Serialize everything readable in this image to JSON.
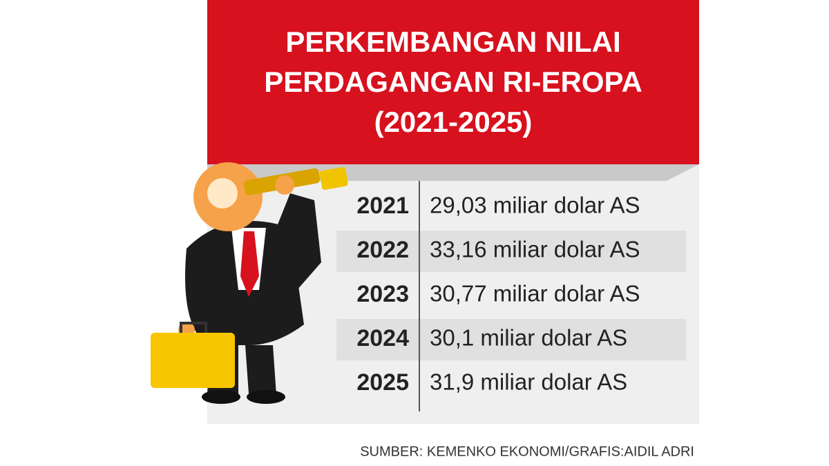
{
  "header": {
    "title_lines": [
      "PERKEMBANGAN NILAI",
      "PERDAGANGAN RI-EROPA",
      "(2021-2025)"
    ]
  },
  "table": {
    "rows": [
      [
        "2021",
        "29,03 miliar dolar AS"
      ],
      [
        "2022",
        "33,16 miliar dolar AS"
      ],
      [
        "2023",
        "30,77 miliar dolar AS"
      ],
      [
        "2024",
        "30,1 miliar dolar AS"
      ],
      [
        "2025",
        "31,9 miliar dolar AS"
      ]
    ]
  },
  "footer": {
    "source": "SUMBER: KEMENKO EKONOMI/GRAFIS:AIDIL ADRI"
  }
}
